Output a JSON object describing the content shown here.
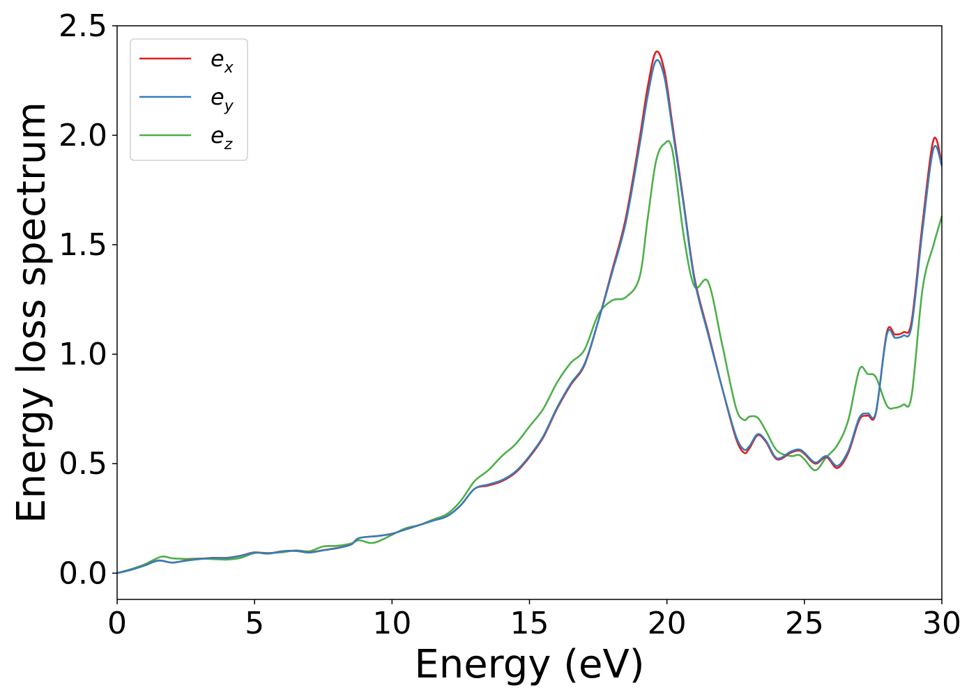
{
  "chart_data": {
    "type": "line",
    "xlabel": "Energy (eV)",
    "ylabel": "Energy loss spectrum",
    "xlim": [
      0,
      30
    ],
    "ylim": [
      -0.12,
      2.5
    ],
    "xticks": [
      "0",
      "5",
      "10",
      "15",
      "20",
      "25",
      "30"
    ],
    "yticks": [
      "0.0",
      "0.5",
      "1.0",
      "1.5",
      "2.0",
      "2.5"
    ],
    "grid": false,
    "legend_position": "top-left",
    "series": [
      {
        "name": "e_x",
        "label_main": "e",
        "label_sub": "x",
        "color": "#e41a1c",
        "points": [
          [
            0,
            0.0
          ],
          [
            0.5,
            0.015
          ],
          [
            1.0,
            0.035
          ],
          [
            1.5,
            0.058
          ],
          [
            2.0,
            0.048
          ],
          [
            2.5,
            0.058
          ],
          [
            3.0,
            0.065
          ],
          [
            3.5,
            0.07
          ],
          [
            4.0,
            0.07
          ],
          [
            4.5,
            0.08
          ],
          [
            5.0,
            0.095
          ],
          [
            5.5,
            0.09
          ],
          [
            6.0,
            0.1
          ],
          [
            6.5,
            0.102
          ],
          [
            7.0,
            0.095
          ],
          [
            7.5,
            0.105
          ],
          [
            8.0,
            0.115
          ],
          [
            8.5,
            0.13
          ],
          [
            8.8,
            0.16
          ],
          [
            9.5,
            0.17
          ],
          [
            10.0,
            0.18
          ],
          [
            10.5,
            0.2
          ],
          [
            11.0,
            0.22
          ],
          [
            11.5,
            0.24
          ],
          [
            12.0,
            0.26
          ],
          [
            12.5,
            0.31
          ],
          [
            13.0,
            0.385
          ],
          [
            13.5,
            0.4
          ],
          [
            14.0,
            0.42
          ],
          [
            14.5,
            0.46
          ],
          [
            15.0,
            0.53
          ],
          [
            15.5,
            0.62
          ],
          [
            16.0,
            0.75
          ],
          [
            16.5,
            0.86
          ],
          [
            17.0,
            0.95
          ],
          [
            17.5,
            1.15
          ],
          [
            18.0,
            1.38
          ],
          [
            18.5,
            1.62
          ],
          [
            19.0,
            1.98
          ],
          [
            19.3,
            2.22
          ],
          [
            19.6,
            2.38
          ],
          [
            19.9,
            2.3
          ],
          [
            20.2,
            2.05
          ],
          [
            20.6,
            1.7
          ],
          [
            21.0,
            1.35
          ],
          [
            21.5,
            1.1
          ],
          [
            22.0,
            0.85
          ],
          [
            22.5,
            0.62
          ],
          [
            22.8,
            0.55
          ],
          [
            23.0,
            0.57
          ],
          [
            23.3,
            0.63
          ],
          [
            23.6,
            0.6
          ],
          [
            24.0,
            0.52
          ],
          [
            24.5,
            0.55
          ],
          [
            24.8,
            0.56
          ],
          [
            25.0,
            0.545
          ],
          [
            25.4,
            0.5
          ],
          [
            25.8,
            0.53
          ],
          [
            26.2,
            0.48
          ],
          [
            26.6,
            0.55
          ],
          [
            27.0,
            0.7
          ],
          [
            27.3,
            0.72
          ],
          [
            27.6,
            0.73
          ],
          [
            28.0,
            1.1
          ],
          [
            28.3,
            1.09
          ],
          [
            28.6,
            1.1
          ],
          [
            28.9,
            1.15
          ],
          [
            29.3,
            1.6
          ],
          [
            29.7,
            1.98
          ],
          [
            30.0,
            1.87
          ]
        ]
      },
      {
        "name": "e_y",
        "label_main": "e",
        "label_sub": "y",
        "color": "#377eb8",
        "points": [
          [
            0,
            0.0
          ],
          [
            0.5,
            0.015
          ],
          [
            1.0,
            0.035
          ],
          [
            1.5,
            0.057
          ],
          [
            2.0,
            0.048
          ],
          [
            2.5,
            0.057
          ],
          [
            3.0,
            0.064
          ],
          [
            3.5,
            0.069
          ],
          [
            4.0,
            0.069
          ],
          [
            4.5,
            0.079
          ],
          [
            5.0,
            0.094
          ],
          [
            5.5,
            0.089
          ],
          [
            6.0,
            0.099
          ],
          [
            6.5,
            0.101
          ],
          [
            7.0,
            0.094
          ],
          [
            7.5,
            0.104
          ],
          [
            8.0,
            0.114
          ],
          [
            8.5,
            0.13
          ],
          [
            8.8,
            0.16
          ],
          [
            9.5,
            0.17
          ],
          [
            10.0,
            0.18
          ],
          [
            10.5,
            0.2
          ],
          [
            11.0,
            0.22
          ],
          [
            11.5,
            0.24
          ],
          [
            12.0,
            0.26
          ],
          [
            12.5,
            0.31
          ],
          [
            13.0,
            0.385
          ],
          [
            13.5,
            0.405
          ],
          [
            14.0,
            0.425
          ],
          [
            14.5,
            0.465
          ],
          [
            15.0,
            0.535
          ],
          [
            15.5,
            0.625
          ],
          [
            16.0,
            0.755
          ],
          [
            16.5,
            0.865
          ],
          [
            17.0,
            0.955
          ],
          [
            17.5,
            1.15
          ],
          [
            18.0,
            1.37
          ],
          [
            18.5,
            1.6
          ],
          [
            19.0,
            1.95
          ],
          [
            19.3,
            2.18
          ],
          [
            19.6,
            2.34
          ],
          [
            19.9,
            2.27
          ],
          [
            20.2,
            2.03
          ],
          [
            20.6,
            1.69
          ],
          [
            21.0,
            1.34
          ],
          [
            21.5,
            1.09
          ],
          [
            22.0,
            0.85
          ],
          [
            22.5,
            0.63
          ],
          [
            22.8,
            0.565
          ],
          [
            23.0,
            0.58
          ],
          [
            23.3,
            0.635
          ],
          [
            23.6,
            0.605
          ],
          [
            24.0,
            0.525
          ],
          [
            24.5,
            0.555
          ],
          [
            24.8,
            0.565
          ],
          [
            25.0,
            0.55
          ],
          [
            25.4,
            0.505
          ],
          [
            25.8,
            0.535
          ],
          [
            26.2,
            0.49
          ],
          [
            26.6,
            0.56
          ],
          [
            27.0,
            0.71
          ],
          [
            27.3,
            0.73
          ],
          [
            27.6,
            0.735
          ],
          [
            28.0,
            1.09
          ],
          [
            28.3,
            1.075
          ],
          [
            28.6,
            1.085
          ],
          [
            28.9,
            1.13
          ],
          [
            29.3,
            1.57
          ],
          [
            29.7,
            1.94
          ],
          [
            30.0,
            1.86
          ]
        ]
      },
      {
        "name": "e_z",
        "label_main": "e",
        "label_sub": "z",
        "color": "#4daf4a",
        "points": [
          [
            0,
            0.0
          ],
          [
            0.5,
            0.018
          ],
          [
            1.0,
            0.04
          ],
          [
            1.6,
            0.075
          ],
          [
            2.0,
            0.068
          ],
          [
            2.5,
            0.065
          ],
          [
            3.0,
            0.067
          ],
          [
            3.5,
            0.064
          ],
          [
            4.0,
            0.062
          ],
          [
            4.5,
            0.07
          ],
          [
            5.0,
            0.092
          ],
          [
            5.5,
            0.092
          ],
          [
            6.0,
            0.095
          ],
          [
            6.5,
            0.104
          ],
          [
            7.0,
            0.1
          ],
          [
            7.5,
            0.122
          ],
          [
            8.0,
            0.125
          ],
          [
            8.5,
            0.135
          ],
          [
            8.8,
            0.15
          ],
          [
            9.2,
            0.138
          ],
          [
            9.5,
            0.145
          ],
          [
            10.0,
            0.175
          ],
          [
            10.5,
            0.205
          ],
          [
            11.0,
            0.22
          ],
          [
            11.5,
            0.245
          ],
          [
            12.0,
            0.27
          ],
          [
            12.5,
            0.33
          ],
          [
            13.0,
            0.42
          ],
          [
            13.5,
            0.47
          ],
          [
            14.0,
            0.535
          ],
          [
            14.5,
            0.59
          ],
          [
            15.0,
            0.67
          ],
          [
            15.5,
            0.75
          ],
          [
            16.0,
            0.87
          ],
          [
            16.5,
            0.96
          ],
          [
            17.0,
            1.02
          ],
          [
            17.5,
            1.18
          ],
          [
            18.0,
            1.245
          ],
          [
            18.5,
            1.26
          ],
          [
            19.0,
            1.35
          ],
          [
            19.3,
            1.62
          ],
          [
            19.6,
            1.88
          ],
          [
            19.9,
            1.96
          ],
          [
            20.2,
            1.93
          ],
          [
            20.6,
            1.55
          ],
          [
            21.0,
            1.31
          ],
          [
            21.5,
            1.33
          ],
          [
            22.0,
            1.05
          ],
          [
            22.5,
            0.76
          ],
          [
            22.8,
            0.7
          ],
          [
            23.0,
            0.715
          ],
          [
            23.3,
            0.71
          ],
          [
            23.6,
            0.65
          ],
          [
            24.0,
            0.56
          ],
          [
            24.5,
            0.535
          ],
          [
            24.8,
            0.54
          ],
          [
            25.0,
            0.52
          ],
          [
            25.4,
            0.47
          ],
          [
            25.8,
            0.53
          ],
          [
            26.2,
            0.585
          ],
          [
            26.6,
            0.7
          ],
          [
            27.0,
            0.93
          ],
          [
            27.3,
            0.91
          ],
          [
            27.6,
            0.895
          ],
          [
            28.0,
            0.765
          ],
          [
            28.3,
            0.755
          ],
          [
            28.6,
            0.77
          ],
          [
            28.9,
            0.81
          ],
          [
            29.3,
            1.3
          ],
          [
            29.7,
            1.5
          ],
          [
            30.0,
            1.63
          ]
        ]
      }
    ]
  }
}
